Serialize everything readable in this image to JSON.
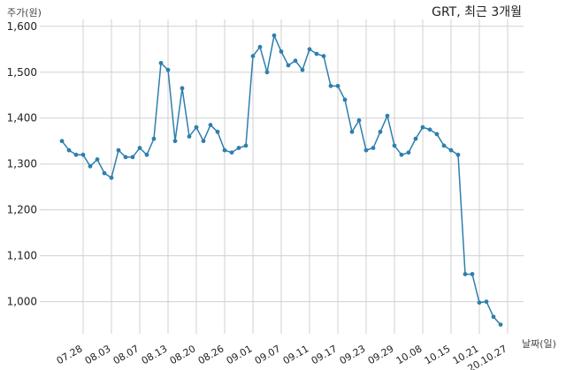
{
  "chart_data": {
    "type": "line",
    "title": "GRT, 최근 3개월",
    "xlabel": "날짜(일)",
    "ylabel": "주가(원)",
    "ylim": [
      930,
      1615
    ],
    "yticks": [
      1000,
      1100,
      1200,
      1300,
      1400,
      1500,
      1600
    ],
    "ytick_labels": [
      "1,000",
      "1,100",
      "1,200",
      "1,300",
      "1,400",
      "1,500",
      "1,600"
    ],
    "grid": true,
    "line_color": "#2e7fad",
    "xtick_labels": [
      "07.28",
      "08.03",
      "08.07",
      "08.13",
      "08.20",
      "08.26",
      "09.01",
      "09.07",
      "09.11",
      "09.17",
      "09.23",
      "09.29",
      "10.08",
      "10.15",
      "10.21",
      "20.10.27"
    ],
    "xtick_positions": [
      3,
      7,
      11,
      15,
      19,
      23,
      27,
      31,
      35,
      39,
      43,
      47,
      51,
      55,
      59,
      63
    ],
    "series": [
      {
        "values": [
          1350,
          1330,
          1320,
          1320,
          1295,
          1310,
          1280,
          1270,
          1330,
          1315,
          1315,
          1335,
          1320,
          1355,
          1520,
          1505,
          1350,
          1465,
          1360,
          1380,
          1350,
          1385,
          1370,
          1330,
          1325,
          1335,
          1340,
          1535,
          1555,
          1500,
          1580,
          1545,
          1515,
          1525,
          1505,
          1550,
          1540,
          1535,
          1470,
          1470,
          1440,
          1370,
          1395,
          1330,
          1335,
          1370,
          1405,
          1340,
          1320,
          1325,
          1355,
          1380,
          1375,
          1365,
          1340,
          1330,
          1320,
          1060,
          1060,
          998,
          1000,
          967,
          950
        ]
      }
    ]
  }
}
